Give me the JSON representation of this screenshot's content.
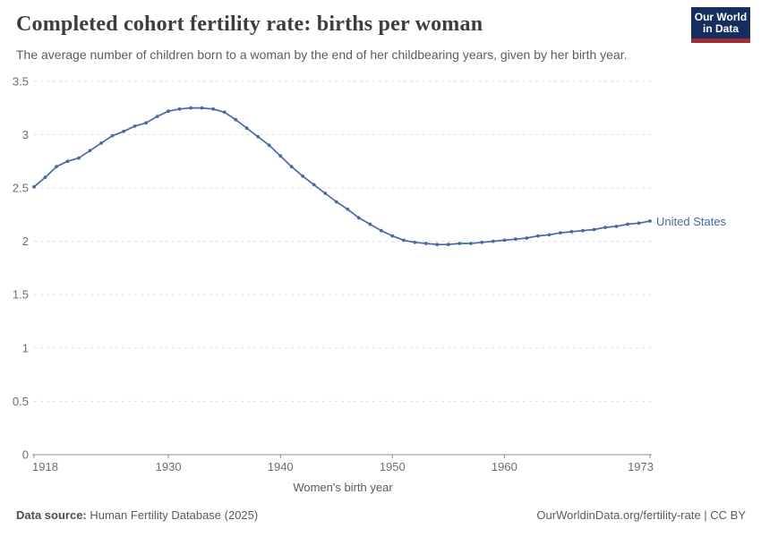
{
  "header": {
    "title": "Completed cohort fertility rate: births per woman",
    "subtitle": "The average number of children born to a woman by the end of her childbearing years, given by her birth year."
  },
  "logo": {
    "line1": "Our World",
    "line2": "in Data"
  },
  "axes": {
    "y_tick_labels": [
      "0",
      "0.5",
      "1",
      "1.5",
      "2",
      "2.5",
      "3",
      "3.5"
    ],
    "x_tick_labels": [
      "1918",
      "1930",
      "1940",
      "1950",
      "1960",
      "1973"
    ],
    "x_axis_title": "Women's birth year"
  },
  "entity_label": "United States",
  "footer": {
    "source_label": "Data source:",
    "source_value": " Human Fertility Database (2025)",
    "right_text": "OurWorldinData.org/fertility-rate | CC BY"
  },
  "colors": {
    "line": "#4a69a2",
    "grid": "#dedede",
    "axis": "#929292",
    "logo_bg": "#142f5d",
    "logo_bar": "#a02e38",
    "title": "#3d3d3d",
    "subtitle": "#5c5c5c",
    "tick": "#6e6e6e"
  },
  "chart_data": {
    "type": "line",
    "title": "Completed cohort fertility rate: births per woman",
    "xlabel": "Women's birth year",
    "ylabel": "",
    "xlim": [
      1918,
      1973
    ],
    "ylim": [
      0,
      3.5
    ],
    "yticks": [
      0,
      0.5,
      1,
      1.5,
      2,
      2.5,
      3,
      3.5
    ],
    "xticks": [
      1918,
      1930,
      1940,
      1950,
      1960,
      1973
    ],
    "grid": "horizontal-dashed",
    "legend_position": "end-of-line",
    "x": [
      1918,
      1919,
      1920,
      1921,
      1922,
      1923,
      1924,
      1925,
      1926,
      1927,
      1928,
      1929,
      1930,
      1931,
      1932,
      1933,
      1934,
      1935,
      1936,
      1937,
      1938,
      1939,
      1940,
      1941,
      1942,
      1943,
      1944,
      1945,
      1946,
      1947,
      1948,
      1949,
      1950,
      1951,
      1952,
      1953,
      1954,
      1955,
      1956,
      1957,
      1958,
      1959,
      1960,
      1961,
      1962,
      1963,
      1964,
      1965,
      1966,
      1967,
      1968,
      1969,
      1970,
      1971,
      1972,
      1973
    ],
    "series": [
      {
        "name": "United States",
        "values": [
          2.51,
          2.6,
          2.7,
          2.75,
          2.78,
          2.85,
          2.92,
          2.99,
          3.03,
          3.08,
          3.11,
          3.17,
          3.22,
          3.24,
          3.25,
          3.25,
          3.24,
          3.21,
          3.14,
          3.06,
          2.98,
          2.9,
          2.8,
          2.7,
          2.61,
          2.53,
          2.45,
          2.37,
          2.3,
          2.22,
          2.16,
          2.1,
          2.05,
          2.01,
          1.99,
          1.98,
          1.97,
          1.97,
          1.98,
          1.98,
          1.99,
          2.0,
          2.01,
          2.02,
          2.03,
          2.05,
          2.06,
          2.08,
          2.09,
          2.1,
          2.11,
          2.13,
          2.14,
          2.16,
          2.17,
          2.19
        ]
      }
    ]
  }
}
